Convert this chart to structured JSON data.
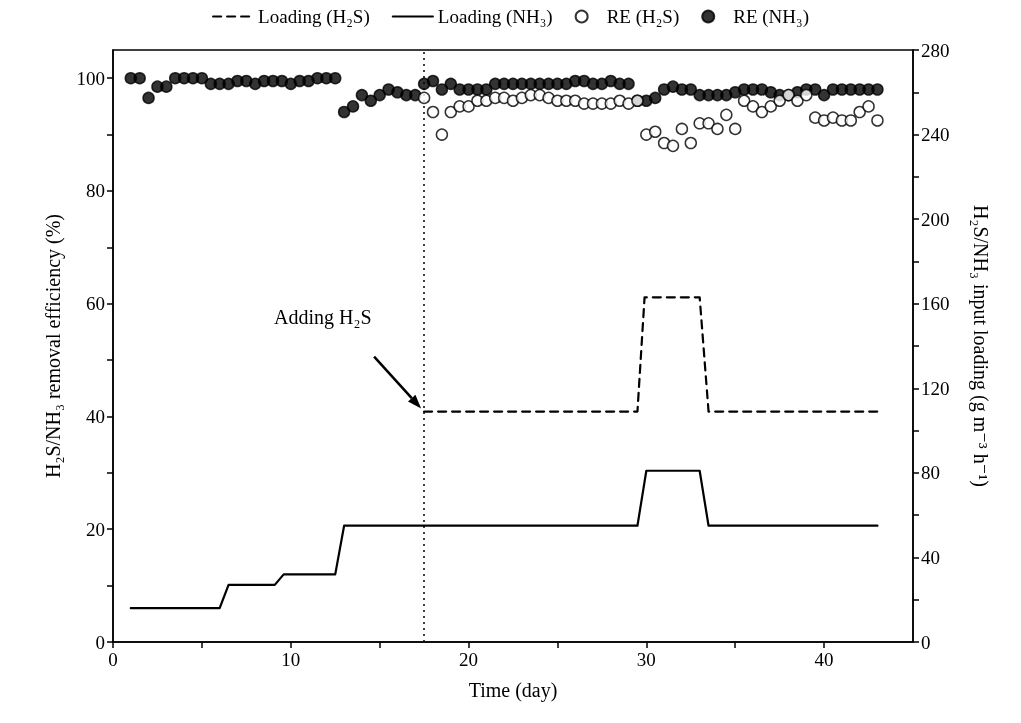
{
  "chart_data": {
    "type": "scatter",
    "xlabel": "Time (day)",
    "ylabel": "H₂S/NH₃ removal efficiency (%)",
    "y2label": "H₂S/NH₃ input loading (g m⁻³ h⁻¹)",
    "xlim": [
      0,
      45
    ],
    "xticks": [
      0,
      {
        "value": 5,
        "label": null
      },
      10,
      {
        "value": 15,
        "label": null
      },
      20,
      {
        "value": 25,
        "label": null
      },
      30,
      {
        "value": 35,
        "label": null
      },
      40
    ],
    "ylim": [
      0,
      105
    ],
    "yticks": [
      0,
      {
        "value": 10,
        "label": null
      },
      20,
      {
        "value": 30,
        "label": null
      },
      40,
      {
        "value": 50,
        "label": null
      },
      60,
      {
        "value": 70,
        "label": null
      },
      80,
      {
        "value": 90,
        "label": null
      },
      100
    ],
    "y2lim": [
      0,
      280
    ],
    "y2ticks": [
      0,
      {
        "value": 20,
        "label": null
      },
      40,
      {
        "value": 60,
        "label": null
      },
      80,
      {
        "value": 100,
        "label": null
      },
      120,
      {
        "value": 140,
        "label": null
      },
      160,
      {
        "value": 180,
        "label": null
      },
      200,
      {
        "value": 220,
        "label": null
      },
      240,
      {
        "value": 260,
        "label": null
      },
      280
    ],
    "legend": "top",
    "grid": false,
    "series": [
      {
        "name": "Loading (H₂S)",
        "type": "line",
        "axis": "y2",
        "color": "#000000",
        "line_style": "dashed",
        "marker": "none",
        "x": [
          17.5,
          29.5,
          29.9,
          33.0,
          33.5,
          43.0
        ],
        "values": [
          109,
          109,
          163,
          163,
          109,
          109
        ]
      },
      {
        "name": "Loading (NH₃)",
        "type": "line",
        "axis": "y2",
        "color": "#000000",
        "line_style": "solid",
        "marker": "none",
        "x": [
          1.0,
          6.0,
          6.5,
          9.1,
          9.6,
          12.5,
          13.0,
          29.5,
          30.0,
          33.0,
          33.5,
          43.0
        ],
        "values": [
          16,
          16,
          27,
          27,
          32,
          32,
          55,
          55,
          81,
          81,
          55,
          55
        ]
      },
      {
        "name": "RE (H₂S)",
        "color": "#ffffff",
        "marker": "circle",
        "x": [
          17.5,
          18,
          18.5,
          19,
          19.5,
          20,
          20.5,
          21,
          21.5,
          22,
          22.5,
          23,
          23.5,
          24,
          24.5,
          25,
          25.5,
          26,
          26.5,
          27,
          27.5,
          28,
          28.5,
          29,
          29.5,
          30,
          30.5,
          31,
          31.5,
          32,
          32.5,
          33,
          33.5,
          34,
          34.5,
          35,
          35.5,
          36,
          36.5,
          37,
          37.5,
          38,
          38.5,
          39,
          39.5,
          40,
          40.5,
          41,
          41.5,
          42,
          42.5,
          43
        ],
        "values": [
          96.5,
          94,
          90,
          94,
          95,
          95,
          96,
          96,
          96.5,
          96.5,
          96,
          96.5,
          97,
          97,
          96.5,
          96,
          96,
          96,
          95.5,
          95.5,
          95.5,
          95.5,
          96,
          95.5,
          96,
          90,
          90.5,
          88.5,
          88,
          91,
          88.5,
          92,
          92,
          91,
          93.5,
          91,
          96,
          95,
          94,
          95,
          96,
          97,
          96,
          97,
          93,
          92.5,
          93,
          92.5,
          92.5,
          94,
          95,
          92.5
        ]
      },
      {
        "name": "RE (NH₃)",
        "color": "#000000",
        "marker": "circle",
        "x": [
          1,
          1.5,
          2,
          2.5,
          3,
          3.5,
          4,
          4.5,
          5,
          5.5,
          6,
          6.5,
          7,
          7.5,
          8,
          8.5,
          9,
          9.5,
          10,
          10.5,
          11,
          11.5,
          12,
          12.5,
          13,
          13.5,
          14,
          14.5,
          15,
          15.5,
          16,
          16.5,
          17,
          17.5,
          18,
          18.5,
          19,
          19.5,
          20,
          20.5,
          21,
          21.5,
          22,
          22.5,
          23,
          23.5,
          24,
          24.5,
          25,
          25.5,
          26,
          26.5,
          27,
          27.5,
          28,
          28.5,
          29,
          29.5,
          30,
          30.5,
          31,
          31.5,
          32,
          32.5,
          33,
          33.5,
          34,
          34.5,
          35,
          35.5,
          36,
          36.5,
          37,
          37.5,
          38,
          38.5,
          39,
          39.5,
          40,
          40.5,
          41,
          41.5,
          42,
          42.5,
          43
        ],
        "values": [
          100,
          100,
          96.5,
          98.5,
          98.5,
          100,
          100,
          100,
          100,
          99,
          99,
          99,
          99.5,
          99.5,
          99,
          99.5,
          99.5,
          99.5,
          99,
          99.5,
          99.5,
          100,
          100,
          100,
          94,
          95,
          97,
          96,
          97,
          98,
          97.5,
          97,
          97,
          99,
          99.5,
          98,
          99,
          98,
          98,
          98,
          98,
          99,
          99,
          99,
          99,
          99,
          99,
          99,
          99,
          99,
          99.5,
          99.5,
          99,
          99,
          99.5,
          99,
          99,
          96,
          96,
          96.5,
          98,
          98.5,
          98,
          98,
          97,
          97,
          97,
          97,
          97.5,
          98,
          98,
          98,
          97.5,
          97,
          97,
          97.5,
          98,
          98,
          97,
          98,
          98,
          98,
          98,
          98,
          98
        ]
      }
    ],
    "ref_lines": [
      {
        "axis": "x",
        "value": 17.5,
        "line_style": "dotted",
        "color": "#000000"
      }
    ],
    "annotations": [
      "Adding H₂S"
    ]
  }
}
